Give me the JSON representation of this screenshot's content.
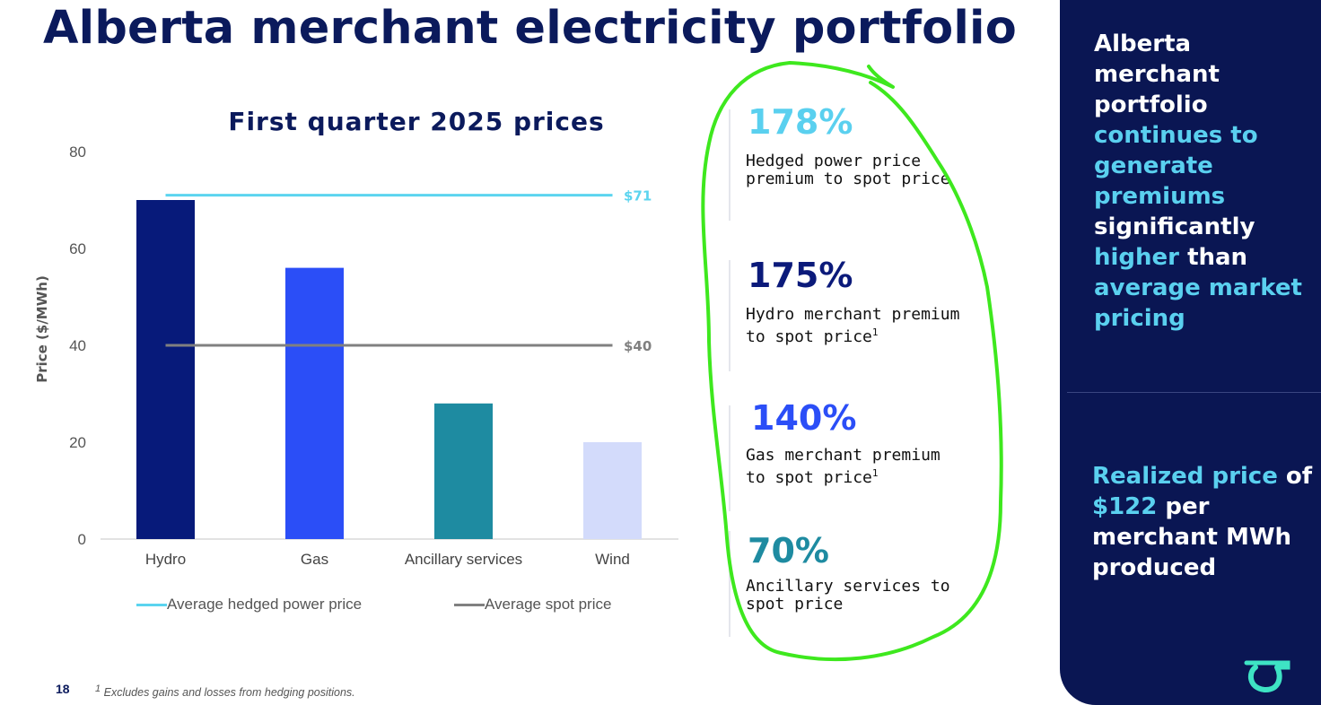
{
  "title": "Alberta merchant electricity portfolio",
  "chart_data": {
    "type": "bar",
    "title": "First quarter 2025 prices",
    "ylabel": "Price ($/MWh)",
    "xlabel": "",
    "ylim": [
      0,
      80
    ],
    "yticks": [
      0,
      20,
      40,
      60,
      80
    ],
    "categories": [
      "Hydro",
      "Gas",
      "Ancillary services",
      "Wind"
    ],
    "values": [
      70,
      56,
      28,
      20
    ],
    "bar_colors": [
      "#071a7a",
      "#2b4ef7",
      "#1e8ba1",
      "#d3dbfb"
    ],
    "reference_lines": [
      {
        "name": "Average hedged power price",
        "value": 71,
        "label": "$71",
        "color": "#5bd4ef"
      },
      {
        "name": "Average spot price",
        "value": 40,
        "label": "$40",
        "color": "#808080"
      }
    ],
    "legend_position": "bottom"
  },
  "stats": [
    {
      "value": "178%",
      "label": "Hedged power price\npremium to spot price",
      "sup": "",
      "color": "#5ad0ef"
    },
    {
      "value": "175%",
      "label": "Hydro merchant premium\nto spot price",
      "sup": "1",
      "color": "#0b1a7a"
    },
    {
      "value": "140%",
      "label": "Gas merchant premium\nto spot price",
      "sup": "1",
      "color": "#2b4ef7"
    },
    {
      "value": "70%",
      "label": "Ancillary services to\nspot price",
      "sup": "",
      "color": "#1e8ba1"
    }
  ],
  "panel": {
    "top_segments": [
      {
        "text": "Alberta merchant portfolio ",
        "highlight": false
      },
      {
        "text": "continues to generate premiums ",
        "highlight": true
      },
      {
        "text": "significantly ",
        "highlight": false
      },
      {
        "text": "higher ",
        "highlight": true
      },
      {
        "text": "than ",
        "highlight": false
      },
      {
        "text": "average market pricing",
        "highlight": true
      }
    ],
    "bottom_segments": [
      {
        "text": "Realized price ",
        "highlight": true
      },
      {
        "text": "of ",
        "highlight": false
      },
      {
        "text": "$122 ",
        "highlight": true
      },
      {
        "text": "per merchant MWh produced",
        "highlight": false
      }
    ],
    "bg_color": "#0a1653",
    "highlight_color": "#5ad0ef"
  },
  "footer": {
    "page_number": "18",
    "footnote_mark": "1",
    "footnote": "Excludes gains and losses from hedging positions."
  },
  "logo_icon": "company-logo-icon"
}
